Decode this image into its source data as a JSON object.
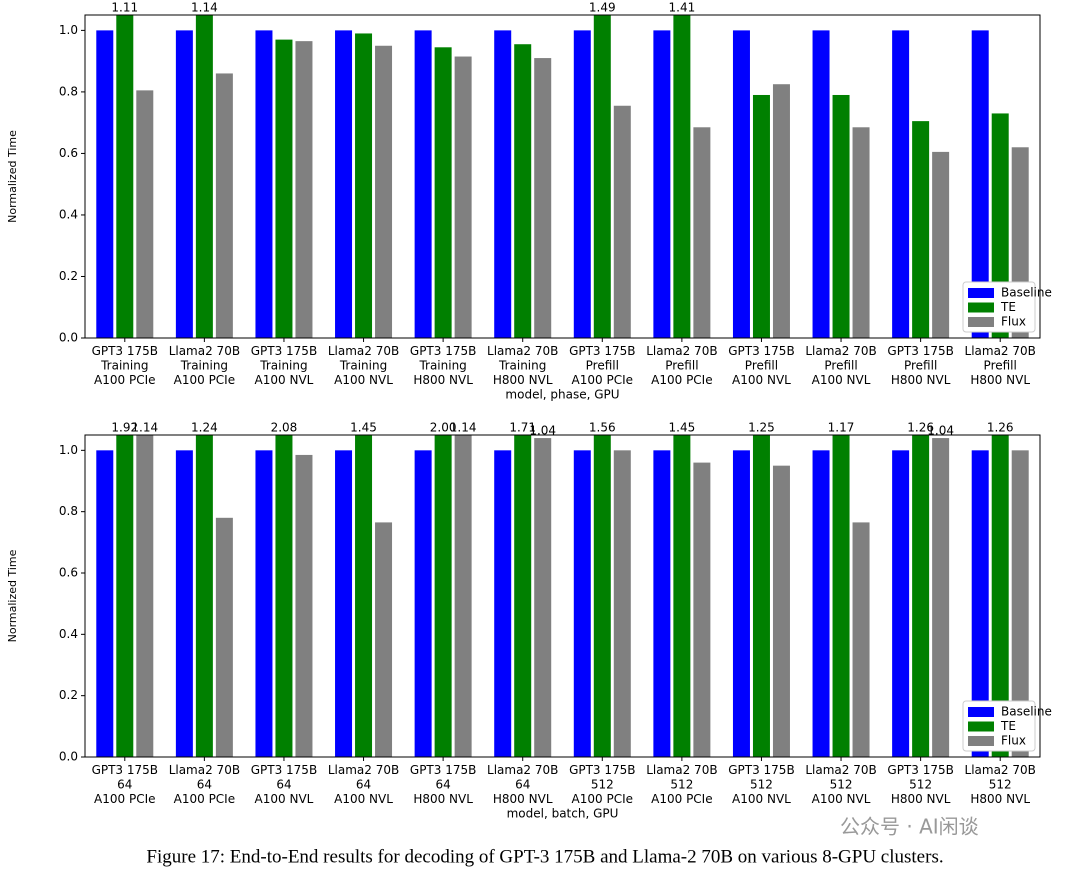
{
  "chart_data": [
    {
      "type": "bar",
      "categories": [
        "GPT3 175B\nTraining\nA100 PCIe",
        "Llama2 70B\nTraining\nA100 PCIe",
        "GPT3 175B\nTraining\nA100 NVL",
        "Llama2 70B\nTraining\nA100 NVL",
        "GPT3 175B\nTraining\nH800 NVL",
        "Llama2 70B\nTraining\nH800 NVL",
        "GPT3 175B\nPrefill\nA100 PCIe",
        "Llama2 70B\nPrefill\nA100 PCIe",
        "GPT3 175B\nPrefill\nA100 NVL",
        "Llama2 70B\nPrefill\nA100 NVL",
        "GPT3 175B\nPrefill\nH800 NVL",
        "Llama2 70B\nPrefill\nH800 NVL"
      ],
      "xlabel": "model, phase, GPU",
      "ylabel": "Normalized Time",
      "ylim": [
        0,
        1.05
      ],
      "yticks": [
        {
          "value": 0,
          "label": "0.0"
        },
        {
          "value": 0.2,
          "label": "0.2"
        },
        {
          "value": 0.4,
          "label": "0.4"
        },
        {
          "value": 0.6,
          "label": "0.6"
        },
        {
          "value": 0.8,
          "label": "0.8"
        },
        {
          "value": 1.0,
          "label": "1.0"
        }
      ],
      "legend": "lower right",
      "series": [
        {
          "name": "Baseline",
          "color": "#0000ff",
          "values": [
            1,
            1,
            1,
            1,
            1,
            1,
            1,
            1,
            1,
            1,
            1,
            1
          ]
        },
        {
          "name": "TE",
          "color": "#008000",
          "values": [
            1.11,
            1.14,
            0.97,
            0.99,
            0.945,
            0.955,
            1.49,
            1.41,
            0.79,
            0.79,
            0.705,
            0.73
          ],
          "value_labels": [
            "1.11",
            "1.14",
            null,
            null,
            null,
            null,
            "1.49",
            "1.41",
            null,
            null,
            null,
            null
          ]
        },
        {
          "name": "Flux",
          "color": "#808080",
          "values": [
            0.805,
            0.86,
            0.965,
            0.95,
            0.915,
            0.91,
            0.755,
            0.685,
            0.825,
            0.685,
            0.605,
            0.62
          ]
        }
      ]
    },
    {
      "type": "bar",
      "categories": [
        "GPT3 175B\n64\nA100 PCIe",
        "Llama2 70B\n64\nA100 PCIe",
        "GPT3 175B\n64\nA100 NVL",
        "Llama2 70B\n64\nA100 NVL",
        "GPT3 175B\n64\nH800 NVL",
        "Llama2 70B\n64\nH800 NVL",
        "GPT3 175B\n512\nA100 PCIe",
        "Llama2 70B\n512\nA100 PCIe",
        "GPT3 175B\n512\nA100 NVL",
        "Llama2 70B\n512\nA100 NVL",
        "GPT3 175B\n512\nH800 NVL",
        "Llama2 70B\n512\nH800 NVL"
      ],
      "xlabel": "model, batch, GPU",
      "ylabel": "Normalized Time",
      "ylim": [
        0,
        1.05
      ],
      "yticks": [
        {
          "value": 0,
          "label": "0.0"
        },
        {
          "value": 0.2,
          "label": "0.2"
        },
        {
          "value": 0.4,
          "label": "0.4"
        },
        {
          "value": 0.6,
          "label": "0.6"
        },
        {
          "value": 0.8,
          "label": "0.8"
        },
        {
          "value": 1.0,
          "label": "1.0"
        }
      ],
      "legend": "lower right",
      "series": [
        {
          "name": "Baseline",
          "color": "#0000ff",
          "values": [
            1,
            1,
            1,
            1,
            1,
            1,
            1,
            1,
            1,
            1,
            1,
            1
          ]
        },
        {
          "name": "TE",
          "color": "#008000",
          "values": [
            1.92,
            1.24,
            2.08,
            1.45,
            2.0,
            1.71,
            1.56,
            1.45,
            1.25,
            1.17,
            1.26,
            1.26
          ],
          "value_labels": [
            "1.92",
            "1.24",
            "2.08",
            "1.45",
            "2.00",
            "1.71",
            "1.56",
            "1.45",
            "1.25",
            "1.17",
            "1.26",
            "1.26"
          ]
        },
        {
          "name": "Flux",
          "color": "#808080",
          "values": [
            1.14,
            0.78,
            0.985,
            0.765,
            1.14,
            1.04,
            1.0,
            0.96,
            0.95,
            0.765,
            1.04,
            1.0
          ],
          "value_labels": [
            "1.14",
            null,
            null,
            null,
            "1.14",
            "1.04",
            null,
            null,
            null,
            null,
            "1.04",
            null
          ]
        }
      ]
    }
  ],
  "caption": "Figure 17: End-to-End results for decoding of GPT-3 175B and Llama-2 70B on various 8-GPU clusters.",
  "watermark": "公众号 · AI闲谈"
}
